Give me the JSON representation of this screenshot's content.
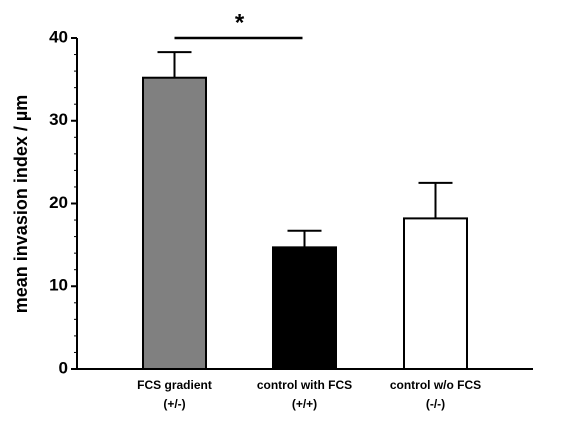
{
  "chart_data": {
    "type": "bar",
    "ylabel": "mean invasion index / µm",
    "categories": [
      [
        "FCS gradient",
        "(+/-)"
      ],
      [
        "control with FCS",
        "(+/+)"
      ],
      [
        "control w/o FCS",
        "(-/-)"
      ]
    ],
    "series": [
      {
        "values": [
          35.2,
          14.7,
          18.2
        ],
        "errors": [
          3.1,
          2.0,
          4.3
        ],
        "colors": [
          "#808080",
          "#000000",
          "#ffffff"
        ]
      }
    ],
    "ylim": [
      0,
      40
    ],
    "yticks": [
      0,
      10,
      20,
      30,
      40
    ],
    "yminorticks": [
      2,
      4,
      6,
      8,
      12,
      14,
      16,
      18,
      22,
      24,
      26,
      28,
      32,
      34,
      36,
      38
    ],
    "significance": [
      {
        "label": "*",
        "pair": [
          0,
          1
        ]
      }
    ]
  }
}
